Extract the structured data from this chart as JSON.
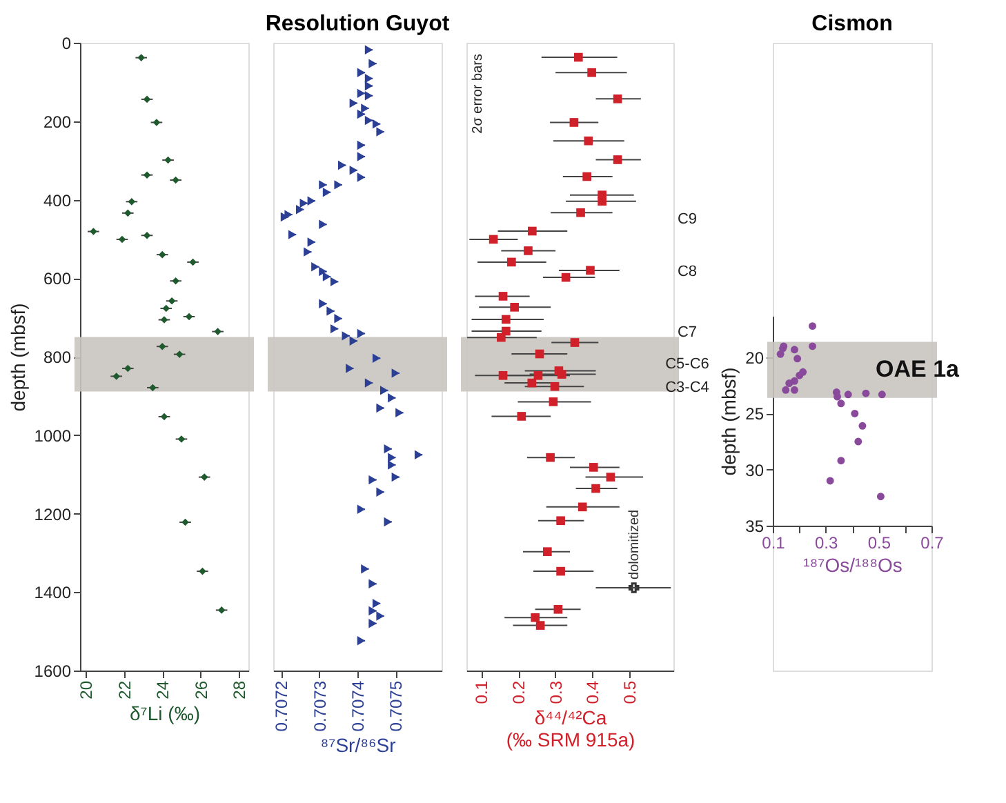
{
  "chart_data": [
    {
      "type": "scatter",
      "xlabel": "δ⁷Li (‰)",
      "ylabel": "depth (mbsf)",
      "xlim": [
        19.7,
        28.5
      ],
      "xticks": [
        20,
        22,
        24,
        26,
        28
      ],
      "ylim": [
        1600,
        0
      ],
      "yticks": [
        0,
        200,
        400,
        600,
        800,
        1000,
        1200,
        1400,
        1600
      ],
      "series": [
        {
          "color": "#1f5a2e",
          "marker": "diamond",
          "x": [
            22.9,
            23.2,
            23.7,
            24.3,
            23.2,
            24.7,
            22.4,
            22.2,
            20.4,
            21.9,
            23.2,
            24.0,
            25.6,
            24.7,
            24.5,
            24.2,
            24.1,
            25.4,
            26.9,
            24.0,
            24.9,
            22.2,
            21.6,
            23.5,
            24.1,
            25.0,
            26.2,
            25.2,
            26.1,
            27.1
          ],
          "values": [
            38,
            144,
            203,
            299,
            337,
            350,
            405,
            434,
            481,
            501,
            491,
            540,
            559,
            607,
            658,
            677,
            706,
            698,
            736,
            774,
            794,
            830,
            850,
            879,
            953,
            1010,
            1107,
            1222,
            1347,
            1446
          ],
          "xerrors": [
            0.3,
            0.3,
            0.3,
            0.3,
            0.3,
            0.3,
            0.3,
            0.3,
            0.3,
            0.3,
            0.3,
            0.3,
            0.3,
            0.3,
            0.3,
            0.3,
            0.3,
            0.3,
            0.3,
            0.3,
            0.3,
            0.3,
            0.3,
            0.3,
            0.3,
            0.3,
            0.3,
            0.3,
            0.3,
            0.3
          ]
        }
      ],
      "bands": [
        {
          "axis": "y",
          "from": 750,
          "to": 889,
          "color": "#c9c5c0"
        }
      ]
    },
    {
      "type": "scatter",
      "title": "Resolution Guyot",
      "xlabel": "⁸⁷Sr/⁸⁶Sr",
      "xlim": [
        0.70718,
        0.70762
      ],
      "xticks": [
        0.7072,
        0.7073,
        0.7074,
        0.7075
      ],
      "ylim": [
        1600,
        0
      ],
      "tick_labels": "x",
      "series": [
        {
          "color": "#2b3f95",
          "marker": "triangle",
          "x": [
            0.70743,
            0.70744,
            0.70741,
            0.70743,
            0.70743,
            0.70741,
            0.70743,
            0.70739,
            0.70742,
            0.70741,
            0.70743,
            0.70745,
            0.70746,
            0.70741,
            0.70741,
            0.70736,
            0.70739,
            0.70741,
            0.70735,
            0.70731,
            0.70732,
            0.70728,
            0.70726,
            0.70725,
            0.70722,
            0.70721,
            0.70731,
            0.70723,
            0.70728,
            0.70727,
            0.70729,
            0.70731,
            0.70732,
            0.70734,
            0.70731,
            0.70733,
            0.70735,
            0.70734,
            0.70737,
            0.70739,
            0.70741,
            0.70738,
            0.70745,
            0.7075,
            0.70743,
            0.70747,
            0.70749,
            0.70746,
            0.70751,
            0.70756,
            0.70748,
            0.70749,
            0.70749,
            0.7075,
            0.70744,
            0.70746,
            0.70741,
            0.70748,
            0.70742,
            0.70744,
            0.70745,
            0.70744,
            0.70746,
            0.70744,
            0.70741
          ],
          "values": [
            18,
            53,
            76,
            91,
            110,
            129,
            135,
            154,
            167,
            182,
            198,
            207,
            227,
            261,
            290,
            312,
            325,
            343,
            362,
            362,
            381,
            403,
            409,
            425,
            438,
            444,
            463,
            489,
            508,
            533,
            571,
            583,
            596,
            609,
            665,
            684,
            703,
            729,
            747,
            760,
            741,
            830,
            804,
            842,
            867,
            886,
            905,
            931,
            943,
            1050,
            1035,
            1057,
            1076,
            1107,
            1114,
            1145,
            1189,
            1221,
            1341,
            1379,
            1429,
            1448,
            1461,
            1480,
            1524
          ],
          "xerrors": [
            1e-05,
            1e-05,
            1e-05,
            1e-05,
            1e-05,
            1e-05,
            1e-05,
            1e-05,
            1e-05,
            1e-05,
            1e-05,
            1e-05,
            1e-05,
            1e-05,
            1e-05,
            1e-05,
            1e-05,
            1e-05,
            1e-05,
            1e-05,
            1e-05,
            1e-05,
            1e-05,
            1e-05,
            1e-05,
            1e-05,
            1e-05,
            1e-05,
            1e-05,
            1e-05,
            1e-05,
            1e-05,
            1e-05,
            1e-05,
            1e-05,
            1e-05,
            1e-05,
            1e-05,
            1e-05,
            1e-05,
            1e-05,
            1e-05,
            1e-05,
            1e-05,
            1e-05,
            1e-05,
            1e-05,
            1e-05,
            1e-05,
            1e-05,
            1e-05,
            1e-05,
            1e-05,
            1e-05,
            1e-05,
            1e-05,
            1e-05,
            1e-05,
            1e-05,
            1e-05,
            1e-05,
            1e-05,
            1e-05,
            1e-05,
            1e-05
          ]
        }
      ],
      "bands": [
        {
          "axis": "y",
          "from": 750,
          "to": 889,
          "color": "#c9c5c0"
        }
      ]
    },
    {
      "type": "scatter",
      "xlabel": "δ⁴⁴/⁴²Ca\n(‰ SRM 915a)",
      "xlim": [
        0.06,
        0.62
      ],
      "xticks": [
        0.1,
        0.2,
        0.3,
        0.4,
        0.5
      ],
      "ylim": [
        1600,
        0
      ],
      "tick_labels": "x",
      "series": [
        {
          "color": "#d0202a",
          "marker": "square",
          "x": [
            0.363,
            0.399,
            0.469,
            0.351,
            0.39,
            0.469,
            0.386,
            0.427,
            0.427,
            0.369,
            0.238,
            0.133,
            0.227,
            0.182,
            0.395,
            0.329,
            0.159,
            0.19,
            0.167,
            0.167,
            0.154,
            0.353,
            0.258,
            0.159,
            0.254,
            0.31,
            0.318,
            0.237,
            0.299,
            0.295,
            0.209,
            0.287,
            0.404,
            0.45,
            0.41,
            0.374,
            0.315,
            0.279,
            0.315,
            0.308,
            0.246,
            0.26
          ],
          "values": [
            37,
            76,
            143,
            203,
            250,
            298,
            341,
            388,
            404,
            433,
            480,
            501,
            530,
            559,
            580,
            598,
            646,
            674,
            705,
            735,
            751,
            764,
            793,
            848,
            848,
            836,
            845,
            867,
            876,
            915,
            952,
            1057,
            1082,
            1107,
            1136,
            1183,
            1218,
            1297,
            1347,
            1444,
            1465,
            1485
          ],
          "xerrors": [
            [
              0.263,
              0.468
            ],
            [
              0.301,
              0.494
            ],
            [
              0.41,
              0.532
            ],
            [
              0.286,
              0.417
            ],
            [
              0.295,
              0.487
            ],
            [
              0.41,
              0.532
            ],
            [
              0.321,
              0.455
            ],
            [
              0.34,
              0.513
            ],
            [
              0.329,
              0.519
            ],
            [
              0.288,
              0.455
            ],
            [
              0.145,
              0.333
            ],
            [
              0.068,
              0.199
            ],
            [
              0.154,
              0.301
            ],
            [
              0.09,
              0.276
            ],
            [
              0.31,
              0.474
            ],
            [
              0.267,
              0.408
            ],
            [
              0.083,
              0.231
            ],
            [
              0.094,
              0.288
            ],
            [
              0.074,
              0.269
            ],
            [
              0.074,
              0.263
            ],
            [
              0.062,
              0.25
            ],
            [
              0.29,
              0.417
            ],
            [
              0.182,
              0.333
            ],
            [
              0.083,
              0.237
            ],
            [
              0.154,
              0.34
            ],
            [
              0.218,
              0.41
            ],
            [
              0.231,
              0.41
            ],
            [
              0.163,
              0.295
            ],
            [
              0.218,
              0.378
            ],
            [
              0.199,
              0.397
            ],
            [
              0.128,
              0.288
            ],
            [
              0.224,
              0.353
            ],
            [
              0.34,
              0.474
            ],
            [
              0.382,
              0.538
            ],
            [
              0.356,
              0.468
            ],
            [
              0.276,
              0.474
            ],
            [
              0.254,
              0.378
            ],
            [
              0.213,
              0.34
            ],
            [
              0.241,
              0.404
            ],
            [
              0.246,
              0.369
            ],
            [
              0.163,
              0.333
            ],
            [
              0.186,
              0.333
            ]
          ]
        },
        {
          "name": "dolomitized",
          "color": "#333333",
          "marker": "cross",
          "x": [
            0.513
          ],
          "values": [
            1389
          ],
          "xerrors": [
            [
              0.41,
              0.613
            ]
          ]
        }
      ],
      "bands": [
        {
          "axis": "y",
          "from": 750,
          "to": 889,
          "color": "#c9c5c0"
        }
      ],
      "annotations": [
        "2σ error bars",
        "C9",
        "C8",
        "C7",
        "C5-C6",
        "C3-C4"
      ]
    },
    {
      "type": "scatter",
      "title": "Cismon",
      "xlabel": "¹⁸⁷Os/¹⁸⁸Os",
      "ylabel": "depth (mbsf)",
      "xlim": [
        0.1,
        0.7
      ],
      "xticks": [
        0.1,
        {
          "value": 0.2,
          "label": null
        },
        0.3,
        {
          "value": 0.4,
          "label": null
        },
        0.5,
        {
          "value": 0.6,
          "label": null
        },
        0.7
      ],
      "ylim": [
        35,
        16.3
      ],
      "yticks": [
        20,
        25,
        30,
        35
      ],
      "series": [
        {
          "color": "#8a4a9c",
          "marker": "circle",
          "x": [
            0.25,
            0.25,
            0.141,
            0.138,
            0.129,
            0.182,
            0.193,
            0.214,
            0.201,
            0.182,
            0.162,
            0.149,
            0.182,
            0.341,
            0.344,
            0.358,
            0.385,
            0.452,
            0.513,
            0.41,
            0.439,
            0.423,
            0.358,
            0.317,
            0.508
          ],
          "values": [
            17.2,
            19.0,
            19.0,
            19.2,
            19.7,
            19.3,
            20.1,
            21.3,
            21.6,
            22.1,
            22.3,
            22.9,
            22.9,
            23.1,
            23.5,
            24.1,
            23.3,
            23.2,
            23.3,
            25.0,
            26.1,
            27.5,
            29.2,
            31.0,
            32.4
          ]
        }
      ],
      "bands": [
        {
          "axis": "y",
          "from": 18.6,
          "to": 23.6,
          "color": "#c9c5c0",
          "label": "OAE 1a"
        }
      ]
    }
  ]
}
